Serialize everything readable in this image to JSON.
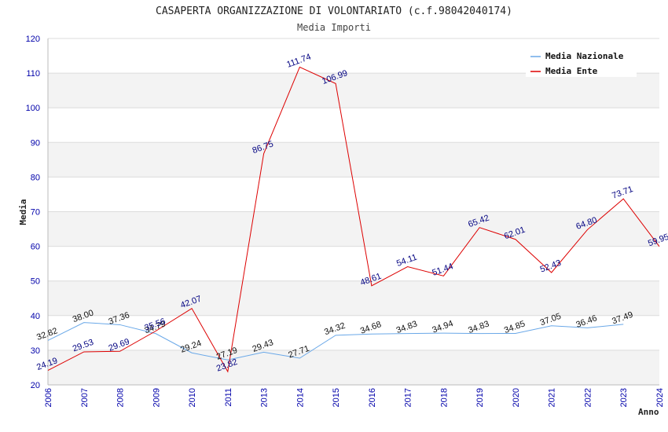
{
  "chart_data": {
    "type": "line",
    "title": "CASAPERTA ORGANIZZAZIONE DI VOLONTARIATO (c.f.98042040174)",
    "subtitle": "Media Importi",
    "xlabel": "Anno",
    "ylabel": "Media",
    "ylim": [
      20,
      120
    ],
    "yticks": [
      20,
      30,
      40,
      50,
      60,
      70,
      80,
      90,
      100,
      110,
      120
    ],
    "categories": [
      "2006",
      "2007",
      "2008",
      "2009",
      "2010",
      "2011",
      "2013",
      "2014",
      "2015",
      "2016",
      "2017",
      "2018",
      "2019",
      "2020",
      "2021",
      "2022",
      "2023",
      "2024"
    ],
    "grid": true,
    "legend_position": "top-right",
    "series": [
      {
        "name": "Media Nazionale",
        "color": "#6aa8e8",
        "label_color": "#111111",
        "values": [
          32.82,
          38.0,
          37.36,
          34.79,
          29.24,
          27.19,
          29.43,
          27.71,
          34.32,
          34.68,
          34.83,
          34.94,
          34.83,
          34.85,
          37.05,
          36.46,
          37.49,
          null
        ],
        "labels": [
          "32.82",
          "38.00",
          "37.36",
          "34.79",
          "29.24",
          "27.19",
          "29.43",
          "27.71",
          "34.32",
          "34.68",
          "34.83",
          "34.94",
          "34.83",
          "34.85",
          "37.05",
          "36.46",
          "37.49",
          null
        ]
      },
      {
        "name": "Media Ente",
        "color": "#dd0000",
        "label_color": "#000080",
        "values": [
          24.19,
          29.53,
          29.69,
          35.56,
          42.07,
          23.82,
          86.75,
          111.74,
          106.99,
          48.61,
          54.11,
          51.44,
          65.42,
          62.01,
          52.43,
          64.8,
          73.71,
          59.95
        ],
        "labels": [
          "24.19",
          "29.53",
          "29.69",
          "35.56",
          "42.07",
          "23.82",
          "86.75",
          "111.74",
          "106.99",
          "48.61",
          "54.11",
          "51.44",
          "65.42",
          "62.01",
          "52.43",
          "64.80",
          "73.71",
          "59.95"
        ]
      }
    ]
  }
}
